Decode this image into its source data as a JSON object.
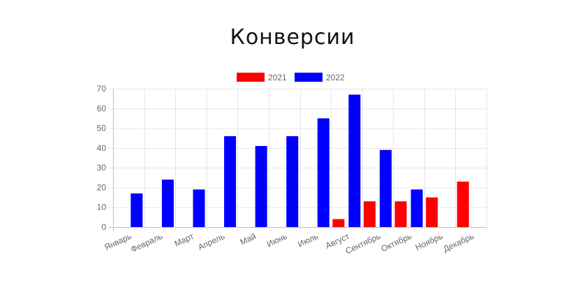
{
  "chart_data": {
    "type": "bar",
    "title": "Конверсии",
    "categories": [
      "Январь",
      "Февраль",
      "Март",
      "Апрель",
      "Май",
      "Июнь",
      "Июль",
      "Август",
      "Сентябрь",
      "Октябрь",
      "Ноябрь",
      "Декабрь"
    ],
    "series": [
      {
        "name": "2021",
        "color": "#ff0000",
        "values": [
          0,
          0,
          0,
          0,
          0,
          0,
          0,
          4,
          13,
          13,
          15,
          23
        ]
      },
      {
        "name": "2022",
        "color": "#0000ff",
        "values": [
          17,
          24,
          19,
          46,
          41,
          46,
          55,
          67,
          39,
          19,
          0,
          0
        ]
      }
    ],
    "ylim": [
      0,
      70
    ],
    "yticks": [
      0,
      10,
      20,
      30,
      40,
      50,
      60,
      70
    ],
    "grid": true,
    "legend_position": "top"
  }
}
